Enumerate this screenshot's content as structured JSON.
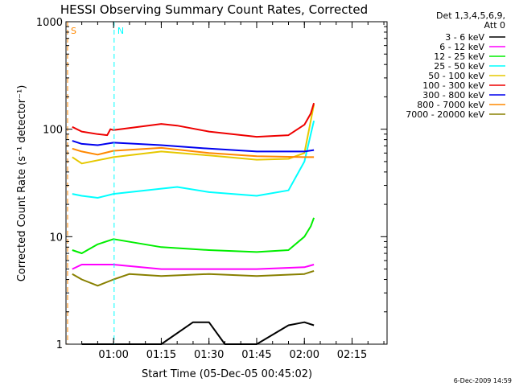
{
  "chart_data": {
    "type": "line",
    "title": "HESSI Observing Summary Count Rates, Corrected",
    "xlabel": "Start Time (05-Dec-05 00:45:02)",
    "ylabel": "Corrected Count Rate (s⁻¹ detector⁻¹)",
    "yscale": "log",
    "ylim": [
      1,
      1000
    ],
    "xlim": [
      "00:45:02",
      "02:26:00"
    ],
    "x_ticks": [
      "01:00",
      "01:15",
      "01:30",
      "01:45",
      "02:00",
      "02:15"
    ],
    "y_ticks": [
      "1",
      "10",
      "100",
      "1000"
    ],
    "legend_header": [
      "Det 1,3,4,5,6,9,",
      "Att 0"
    ],
    "legend_placement": "right",
    "flags": [
      {
        "label": "S",
        "color": "#ff8800",
        "time": "00:45:02"
      },
      {
        "label": "N",
        "color": "#00ffff",
        "time": "00:59:40"
      }
    ],
    "series": [
      {
        "name": "3 - 6 keV",
        "color": "#000000",
        "x": [
          "00:50",
          "01:00",
          "01:15",
          "01:25",
          "01:30",
          "01:35",
          "01:45",
          "01:55",
          "02:00",
          "02:03"
        ],
        "y": [
          1,
          1,
          1,
          1.6,
          1.6,
          1,
          1,
          1.5,
          1.6,
          1.5
        ]
      },
      {
        "name": "6 - 12 keV",
        "color": "#ff00ff",
        "x": [
          "00:47",
          "00:50",
          "01:00",
          "01:15",
          "01:30",
          "01:45",
          "02:00",
          "02:03"
        ],
        "y": [
          5,
          5.5,
          5.5,
          5,
          5,
          5,
          5.2,
          5.5
        ]
      },
      {
        "name": "12 - 25 keV",
        "color": "#00ee00",
        "x": [
          "00:47",
          "00:50",
          "00:55",
          "01:00",
          "01:15",
          "01:30",
          "01:45",
          "01:55",
          "02:00",
          "02:02",
          "02:03"
        ],
        "y": [
          7.5,
          7,
          8.5,
          9.5,
          8,
          7.5,
          7.2,
          7.5,
          10,
          12.5,
          15
        ]
      },
      {
        "name": "25 - 50 keV",
        "color": "#00ffff",
        "x": [
          "00:47",
          "00:50",
          "00:55",
          "01:00",
          "01:15",
          "01:20",
          "01:30",
          "01:45",
          "01:55",
          "02:00",
          "02:02",
          "02:03"
        ],
        "y": [
          25,
          24,
          23,
          25,
          28,
          29,
          26,
          24,
          27,
          50,
          90,
          120
        ]
      },
      {
        "name": "50 - 100 keV",
        "color": "#e6c800",
        "x": [
          "00:47",
          "00:50",
          "01:00",
          "01:15",
          "01:30",
          "01:45",
          "01:55",
          "02:00",
          "02:02",
          "02:03"
        ],
        "y": [
          55,
          48,
          55,
          62,
          57,
          52,
          53,
          60,
          120,
          170
        ]
      },
      {
        "name": "100 - 300 keV",
        "color": "#ee0000",
        "x": [
          "00:47",
          "00:50",
          "00:55",
          "00:58",
          "00:59",
          "01:00",
          "01:15",
          "01:20",
          "01:30",
          "01:45",
          "01:55",
          "02:00",
          "02:02",
          "02:03"
        ],
        "y": [
          105,
          95,
          90,
          88,
          100,
          98,
          112,
          108,
          95,
          85,
          88,
          110,
          140,
          175
        ]
      },
      {
        "name": "300 - 800 keV",
        "color": "#0000ee",
        "x": [
          "00:47",
          "00:50",
          "00:55",
          "01:00",
          "01:15",
          "01:30",
          "01:45",
          "02:00",
          "02:03"
        ],
        "y": [
          78,
          73,
          71,
          75,
          71,
          66,
          62,
          62,
          64
        ]
      },
      {
        "name": "800 - 7000 keV",
        "color": "#ff8800",
        "x": [
          "00:47",
          "00:50",
          "00:55",
          "01:00",
          "01:15",
          "01:30",
          "01:45",
          "02:00",
          "02:03"
        ],
        "y": [
          66,
          62,
          58,
          63,
          67,
          60,
          56,
          55,
          55
        ]
      },
      {
        "name": "7000 - 20000 keV",
        "color": "#888000",
        "x": [
          "00:47",
          "00:50",
          "00:55",
          "01:00",
          "01:05",
          "01:15",
          "01:30",
          "01:45",
          "02:00",
          "02:03"
        ],
        "y": [
          4.5,
          4,
          3.5,
          4,
          4.5,
          4.3,
          4.5,
          4.3,
          4.5,
          4.8
        ]
      }
    ]
  },
  "footer": {
    "timestamp": "6-Dec-2009 14:59"
  }
}
